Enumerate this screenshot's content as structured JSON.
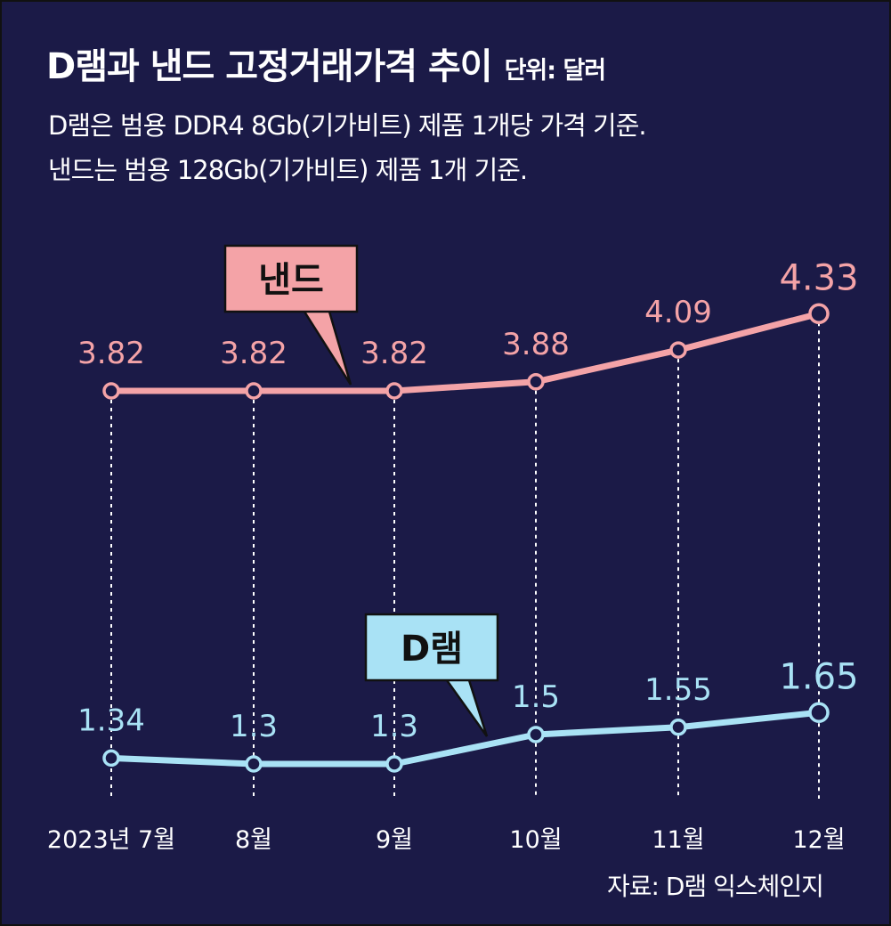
{
  "header": {
    "title": "D램과 낸드 고정거래가격 추이",
    "unit": "단위: 달러",
    "note_line1": "D램은 범용 DDR4 8Gb(기가비트) 제품 1개당 가격 기준.",
    "note_line2": "낸드는 범용 128Gb(기가비트) 제품 1개 기준."
  },
  "source": "자료: D램 익스체인지",
  "colors": {
    "background": "#1b1a47",
    "nand": "#f4a3a7",
    "dram": "#a9e2f5",
    "text": "#ffffff"
  },
  "chart_data": {
    "type": "line",
    "categories": [
      "2023년 7월",
      "8월",
      "9월",
      "10월",
      "11월",
      "12월"
    ],
    "series": [
      {
        "name": "낸드",
        "values": [
          3.82,
          3.82,
          3.82,
          3.88,
          4.09,
          4.33
        ],
        "labels": [
          "3.82",
          "3.82",
          "3.82",
          "3.88",
          "4.09",
          "4.33"
        ]
      },
      {
        "name": "D램",
        "values": [
          1.34,
          1.3,
          1.3,
          1.5,
          1.55,
          1.65
        ],
        "labels": [
          "1.34",
          "1.3",
          "1.3",
          "1.5",
          "1.55",
          "1.65"
        ]
      }
    ],
    "xlabel": "",
    "ylabel": "",
    "grid": false,
    "legend": "callout labels on lines"
  }
}
